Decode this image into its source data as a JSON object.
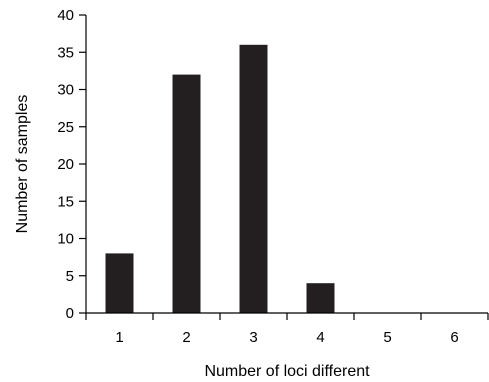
{
  "chart_data": {
    "type": "bar",
    "categories": [
      "1",
      "2",
      "3",
      "4",
      "5",
      "6"
    ],
    "values": [
      8,
      32,
      36,
      4,
      0,
      0
    ],
    "title": "",
    "xlabel": "Number of loci different",
    "ylabel": "Number of samples",
    "ylim": [
      0,
      40
    ],
    "yticks": [
      "0",
      "5",
      "10",
      "15",
      "20",
      "25",
      "30",
      "35",
      "40"
    ],
    "grid": false,
    "bar_color": "#231f20",
    "axis_color": "#000000"
  }
}
